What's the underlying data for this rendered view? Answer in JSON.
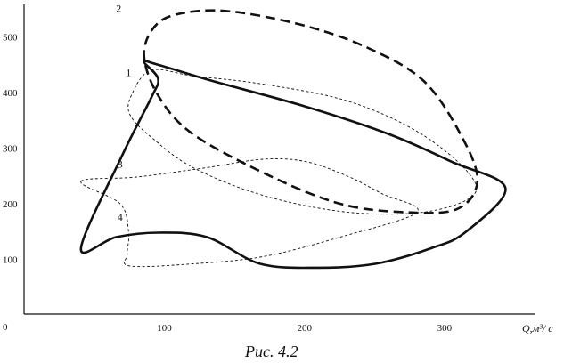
{
  "chart_data": {
    "type": "line",
    "title": "",
    "caption": "Рис. 4.2",
    "xlabel": "Q,м³/ с",
    "ylabel": "",
    "origin_label": "0",
    "xlim": [
      0,
      360
    ],
    "ylim": [
      0,
      560
    ],
    "xticks": [
      "100",
      "200",
      "300"
    ],
    "yticks": [
      "100",
      "200",
      "300",
      "400",
      "500"
    ],
    "xtick_values": [
      100,
      200,
      300
    ],
    "ytick_values": [
      100,
      200,
      300,
      400,
      500
    ],
    "grid": false,
    "legend": "none",
    "series": [
      {
        "name": "1",
        "style": "dashed-thin",
        "points": [
          [
            90,
            440
          ],
          [
            120,
            430
          ],
          [
            170,
            415
          ],
          [
            230,
            385
          ],
          [
            280,
            330
          ],
          [
            315,
            260
          ],
          [
            320,
            215
          ],
          [
            285,
            185
          ],
          [
            230,
            185
          ],
          [
            170,
            215
          ],
          [
            120,
            265
          ],
          [
            90,
            320
          ],
          [
            75,
            360
          ],
          [
            76,
            395
          ],
          [
            90,
            440
          ]
        ]
      },
      {
        "name": "2",
        "style": "dashed-thick",
        "points": [
          [
            118,
            545
          ],
          [
            150,
            545
          ],
          [
            200,
            520
          ],
          [
            245,
            480
          ],
          [
            285,
            420
          ],
          [
            312,
            320
          ],
          [
            323,
            240
          ],
          [
            308,
            190
          ],
          [
            270,
            185
          ],
          [
            225,
            200
          ],
          [
            175,
            250
          ],
          [
            120,
            325
          ],
          [
            95,
            395
          ],
          [
            85,
            470
          ],
          [
            95,
            525
          ],
          [
            118,
            545
          ]
        ]
      },
      {
        "name": "3",
        "style": "dashed-thin",
        "points": [
          [
            40,
            240
          ],
          [
            80,
            248
          ],
          [
            130,
            265
          ],
          [
            170,
            280
          ],
          [
            200,
            276
          ],
          [
            230,
            250
          ],
          [
            255,
            218
          ],
          [
            280,
            185
          ],
          [
            225,
            140
          ],
          [
            170,
            105
          ],
          [
            120,
            92
          ],
          [
            75,
            88
          ],
          [
            73,
            110
          ],
          [
            74,
            150
          ],
          [
            68,
            200
          ],
          [
            40,
            240
          ]
        ]
      },
      {
        "name": "4",
        "style": "solid-thick",
        "points": [
          [
            40,
            120
          ],
          [
            65,
            140
          ],
          [
            95,
            148
          ],
          [
            130,
            140
          ],
          [
            168,
            92
          ],
          [
            210,
            85
          ],
          [
            250,
            92
          ],
          [
            290,
            120
          ],
          [
            315,
            150
          ],
          [
            343,
            228
          ],
          [
            305,
            275
          ],
          [
            260,
            325
          ],
          [
            200,
            375
          ],
          [
            135,
            420
          ],
          [
            95,
            450
          ],
          [
            85,
            455
          ],
          [
            95,
            425
          ],
          [
            90,
            390
          ],
          [
            70,
            290
          ],
          [
            40,
            120
          ]
        ]
      }
    ],
    "series_labels": [
      "1",
      "2",
      "3",
      "4"
    ],
    "colors": {
      "ink": "#111111",
      "background": "#ffffff"
    }
  }
}
